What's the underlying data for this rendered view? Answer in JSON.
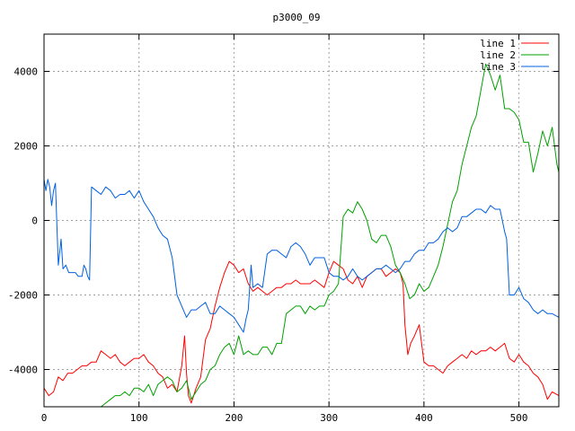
{
  "chart_data": {
    "type": "line",
    "title": "p3000_09",
    "xlabel": "",
    "ylabel": "",
    "xlim": [
      0,
      542
    ],
    "ylim": [
      -5000,
      5000
    ],
    "xticks": [
      0,
      100,
      200,
      300,
      400,
      500
    ],
    "yticks": [
      -4000,
      -2000,
      0,
      2000,
      4000
    ],
    "grid": true,
    "legend": "top-right",
    "series": [
      {
        "name": "line 1",
        "color": "#ff0000",
        "x": [
          0,
          5,
          10,
          15,
          20,
          25,
          30,
          35,
          40,
          45,
          50,
          55,
          60,
          65,
          70,
          75,
          80,
          85,
          90,
          95,
          100,
          105,
          110,
          115,
          120,
          125,
          130,
          135,
          140,
          145,
          148,
          150,
          152,
          155,
          160,
          165,
          170,
          175,
          180,
          185,
          190,
          195,
          200,
          205,
          210,
          215,
          220,
          225,
          230,
          235,
          240,
          245,
          250,
          255,
          260,
          265,
          270,
          275,
          280,
          285,
          290,
          295,
          300,
          305,
          310,
          315,
          320,
          325,
          330,
          335,
          340,
          345,
          350,
          355,
          360,
          365,
          370,
          375,
          378,
          380,
          383,
          386,
          390,
          395,
          400,
          405,
          410,
          415,
          420,
          425,
          430,
          435,
          440,
          445,
          450,
          455,
          460,
          465,
          470,
          475,
          480,
          485,
          490,
          495,
          500,
          505,
          510,
          515,
          520,
          525,
          530,
          535,
          542
        ],
        "values": [
          -4500,
          -4700,
          -4600,
          -4200,
          -4300,
          -4100,
          -4100,
          -4000,
          -3900,
          -3900,
          -3800,
          -3800,
          -3500,
          -3600,
          -3700,
          -3600,
          -3800,
          -3900,
          -3800,
          -3700,
          -3700,
          -3600,
          -3800,
          -3900,
          -4100,
          -4200,
          -4500,
          -4400,
          -4600,
          -3900,
          -3100,
          -4100,
          -4700,
          -4900,
          -4500,
          -4200,
          -3200,
          -2900,
          -2300,
          -1800,
          -1400,
          -1100,
          -1200,
          -1400,
          -1300,
          -1700,
          -1900,
          -1800,
          -1900,
          -2000,
          -1900,
          -1800,
          -1800,
          -1700,
          -1700,
          -1600,
          -1700,
          -1700,
          -1700,
          -1600,
          -1700,
          -1800,
          -1400,
          -1100,
          -1200,
          -1300,
          -1600,
          -1700,
          -1500,
          -1800,
          -1500,
          -1400,
          -1300,
          -1300,
          -1500,
          -1400,
          -1300,
          -1400,
          -1700,
          -2800,
          -3600,
          -3300,
          -3100,
          -2800,
          -3800,
          -3900,
          -3900,
          -4000,
          -4100,
          -3900,
          -3800,
          -3700,
          -3600,
          -3700,
          -3500,
          -3600,
          -3500,
          -3500,
          -3400,
          -3500,
          -3400,
          -3300,
          -3700,
          -3800,
          -3600,
          -3800,
          -3900,
          -4100,
          -4200,
          -4400,
          -4800,
          -4600,
          -4700
        ]
      },
      {
        "name": "line 2",
        "color": "#00a000",
        "x": [
          60,
          65,
          70,
          75,
          80,
          85,
          90,
          95,
          100,
          105,
          110,
          115,
          120,
          125,
          130,
          135,
          140,
          145,
          150,
          155,
          160,
          165,
          170,
          175,
          180,
          185,
          190,
          195,
          200,
          205,
          210,
          215,
          220,
          225,
          230,
          235,
          240,
          245,
          250,
          255,
          260,
          265,
          270,
          275,
          280,
          285,
          290,
          295,
          300,
          305,
          310,
          315,
          320,
          325,
          330,
          335,
          340,
          345,
          350,
          355,
          360,
          365,
          370,
          375,
          380,
          385,
          390,
          395,
          400,
          405,
          410,
          415,
          420,
          425,
          430,
          435,
          440,
          445,
          450,
          455,
          460,
          465,
          470,
          475,
          480,
          485,
          490,
          495,
          500,
          505,
          510,
          515,
          520,
          525,
          530,
          535,
          540,
          542
        ],
        "values": [
          -5000,
          -4900,
          -4800,
          -4700,
          -4700,
          -4600,
          -4700,
          -4500,
          -4500,
          -4600,
          -4400,
          -4700,
          -4400,
          -4300,
          -4200,
          -4300,
          -4600,
          -4500,
          -4300,
          -4800,
          -4600,
          -4400,
          -4300,
          -4000,
          -3900,
          -3600,
          -3400,
          -3300,
          -3600,
          -3100,
          -3600,
          -3500,
          -3600,
          -3600,
          -3400,
          -3400,
          -3600,
          -3300,
          -3300,
          -2500,
          -2400,
          -2300,
          -2300,
          -2500,
          -2300,
          -2400,
          -2300,
          -2300,
          -2000,
          -1900,
          -1700,
          100,
          300,
          200,
          500,
          300,
          0,
          -500,
          -600,
          -400,
          -400,
          -700,
          -1200,
          -1400,
          -1700,
          -2100,
          -2000,
          -1700,
          -1900,
          -1800,
          -1500,
          -1200,
          -700,
          -100,
          500,
          800,
          1500,
          2000,
          2500,
          2800,
          3500,
          4200,
          3900,
          3500,
          3900,
          3000,
          3000,
          2900,
          2700,
          2100,
          2100,
          1300,
          1800,
          2400,
          2000,
          2500,
          1500,
          1300
        ]
      },
      {
        "name": "line 3",
        "color": "#0060e0",
        "x": [
          0,
          2,
          4,
          6,
          8,
          10,
          12,
          15,
          18,
          20,
          23,
          26,
          30,
          33,
          36,
          40,
          42,
          44,
          46,
          48,
          50,
          55,
          60,
          65,
          70,
          75,
          80,
          85,
          90,
          95,
          100,
          105,
          110,
          115,
          120,
          125,
          130,
          135,
          140,
          145,
          150,
          155,
          160,
          165,
          170,
          175,
          180,
          185,
          190,
          195,
          200,
          205,
          210,
          213,
          215,
          218,
          220,
          225,
          230,
          235,
          240,
          245,
          250,
          255,
          260,
          265,
          270,
          275,
          280,
          285,
          290,
          295,
          300,
          305,
          310,
          315,
          320,
          325,
          330,
          335,
          340,
          345,
          350,
          355,
          360,
          365,
          370,
          375,
          380,
          385,
          390,
          395,
          400,
          405,
          410,
          415,
          420,
          425,
          430,
          435,
          440,
          445,
          450,
          455,
          460,
          465,
          470,
          475,
          480,
          485,
          487,
          490,
          495,
          500,
          505,
          510,
          515,
          520,
          525,
          530,
          535,
          542
        ],
        "values": [
          1100,
          800,
          1100,
          900,
          400,
          800,
          1000,
          -1200,
          -500,
          -1300,
          -1200,
          -1400,
          -1400,
          -1400,
          -1500,
          -1500,
          -1200,
          -1300,
          -1500,
          -1600,
          900,
          800,
          700,
          900,
          800,
          600,
          700,
          700,
          800,
          600,
          800,
          500,
          300,
          100,
          -200,
          -400,
          -500,
          -1000,
          -2000,
          -2300,
          -2600,
          -2400,
          -2400,
          -2300,
          -2200,
          -2500,
          -2500,
          -2300,
          -2400,
          -2500,
          -2600,
          -2800,
          -3000,
          -2600,
          -2400,
          -1200,
          -1800,
          -1700,
          -1800,
          -900,
          -800,
          -800,
          -900,
          -1000,
          -700,
          -600,
          -700,
          -900,
          -1200,
          -1000,
          -1000,
          -1000,
          -1400,
          -1500,
          -1500,
          -1600,
          -1500,
          -1300,
          -1500,
          -1600,
          -1500,
          -1400,
          -1300,
          -1300,
          -1200,
          -1300,
          -1400,
          -1300,
          -1100,
          -1100,
          -900,
          -800,
          -800,
          -600,
          -600,
          -500,
          -300,
          -200,
          -300,
          -200,
          100,
          100,
          200,
          300,
          300,
          200,
          400,
          300,
          300,
          -300,
          -500,
          -2000,
          -2000,
          -1800,
          -2100,
          -2200,
          -2400,
          -2500,
          -2400,
          -2500,
          -2500,
          -2600
        ]
      }
    ]
  }
}
